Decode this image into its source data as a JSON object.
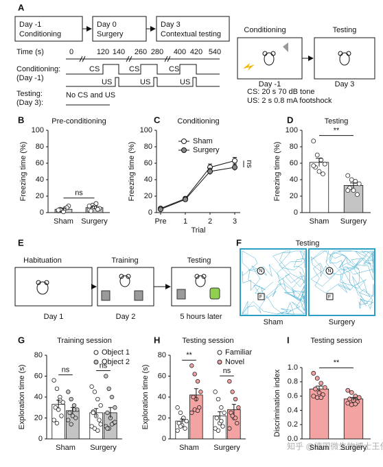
{
  "panel_a": {
    "letter": "A",
    "steps": [
      {
        "day": "Day -1",
        "label": "Conditioning"
      },
      {
        "day": "Day 0",
        "label": "Surgery"
      },
      {
        "day": "Day 3",
        "label": "Contextual testing"
      }
    ],
    "time_label": "Time (s)",
    "time_ticks": [
      0,
      120,
      140,
      260,
      280,
      400,
      420,
      540
    ],
    "conditioning_label": "Conditioning:",
    "conditioning_day": "(Day -1)",
    "cs": "CS",
    "us": "US",
    "testing_label": "Testing:",
    "testing_day": "(Day 3):",
    "testing_note": "No CS and US",
    "box_titles": [
      "Conditioning",
      "Testing"
    ],
    "box_days": [
      "Day -1",
      "Day 3"
    ],
    "notes": [
      "CS: 20 s 70 dB tone",
      "US: 2 s 0.8 mA footshock"
    ]
  },
  "panel_e": {
    "letter": "E",
    "stages": [
      "Habituation",
      "Training",
      "Testing"
    ],
    "times": [
      "Day 1",
      "Day 2",
      "5 hours later"
    ]
  },
  "panel_f": {
    "letter": "F",
    "title": "Testing",
    "groups": [
      "Sham",
      "Surgery"
    ],
    "objects": [
      "N",
      "F"
    ]
  },
  "watermark": "知乎 @德国微生物博士王任",
  "chart_data": [
    {
      "type": "bar",
      "panel": "B",
      "title": "Pre-conditioning",
      "ylabel": "Freezing time (%)",
      "categories": [
        "Sham",
        "Surgery"
      ],
      "values": [
        4,
        6
      ],
      "errors": [
        1.5,
        1.8
      ],
      "colors": [
        "#d4d4d4",
        "#c4c4c4"
      ],
      "point_color": "#ffffff",
      "points": [
        [
          2,
          3,
          5,
          8,
          4,
          1,
          6,
          3
        ],
        [
          3,
          9,
          11,
          5,
          2,
          7,
          4,
          8
        ]
      ],
      "ylim": [
        0,
        100
      ],
      "yticks": [
        0,
        20,
        40,
        60,
        80,
        100
      ],
      "significance": [
        "ns"
      ]
    },
    {
      "type": "line",
      "panel": "C",
      "title": "Conditioning",
      "ylabel": "Freezing time (%)",
      "xlabel": "Trial",
      "categories": [
        "Pre",
        "1",
        "2",
        "3"
      ],
      "series": [
        {
          "name": "Sham",
          "color": "#ffffff",
          "values": [
            5,
            17,
            55,
            63
          ],
          "errors": [
            1.5,
            2,
            4,
            4
          ]
        },
        {
          "name": "Surgery",
          "color": "#8a8a8a",
          "values": [
            4,
            16,
            50,
            55
          ],
          "errors": [
            1.5,
            2,
            4,
            4
          ]
        }
      ],
      "ylim": [
        0,
        100
      ],
      "yticks": [
        0,
        20,
        40,
        60,
        80,
        100
      ],
      "significance": [
        "ns"
      ],
      "legend": "upper left"
    },
    {
      "type": "bar",
      "panel": "D",
      "title": "Testing",
      "ylabel": "Freezing time (%)",
      "categories": [
        "Sham",
        "Surgery"
      ],
      "values": [
        61,
        33
      ],
      "errors": [
        5,
        3
      ],
      "colors": [
        "#ffffff",
        "#c4c4c4"
      ],
      "point_color": "#ffffff",
      "points": [
        [
          87,
          70,
          64,
          59,
          55,
          50,
          47,
          57
        ],
        [
          45,
          40,
          38,
          35,
          30,
          27,
          22,
          27
        ]
      ],
      "ylim": [
        0,
        100
      ],
      "yticks": [
        0,
        20,
        40,
        60,
        80,
        100
      ],
      "significance": [
        "**"
      ]
    },
    {
      "type": "bar",
      "panel": "G",
      "title": "Training session",
      "ylabel": "Exploration time (s)",
      "categories": [
        "Sham",
        "Surgery"
      ],
      "series": [
        {
          "name": "Object 1",
          "color": "#ffffff",
          "values": [
            33,
            25
          ],
          "errors": [
            4,
            4
          ],
          "points": [
            [
              56,
              48,
              40,
              35,
              30,
              28,
              22,
              18,
              15,
              37
            ],
            [
              50,
              45,
              38,
              32,
              26,
              22,
              18,
              12,
              10,
              8,
              14,
              25
            ]
          ]
        },
        {
          "name": "Object 2",
          "color": "#c4c4c4",
          "values": [
            27,
            25
          ],
          "errors": [
            3,
            5
          ],
          "points": [
            [
              45,
              38,
              32,
              28,
              25,
              22,
              20,
              18,
              14,
              28
            ],
            [
              60,
              48,
              40,
              30,
              25,
              20,
              15,
              12,
              10,
              14,
              16,
              10
            ]
          ]
        }
      ],
      "ylim": [
        0,
        80
      ],
      "yticks": [
        0,
        20,
        40,
        60,
        80
      ],
      "significance": [
        "ns",
        "ns"
      ],
      "legend": "upper right"
    },
    {
      "type": "bar",
      "panel": "H",
      "title": "Testing session",
      "ylabel": "Exploration time (s)",
      "categories": [
        "Sham",
        "Surgery"
      ],
      "series": [
        {
          "name": "Familiar",
          "color": "#ffffff",
          "values": [
            17,
            22
          ],
          "errors": [
            2,
            4
          ],
          "points": [
            [
              30,
              25,
              20,
              17,
              15,
              13,
              10,
              8,
              12,
              20
            ],
            [
              45,
              38,
              30,
              25,
              20,
              15,
              12,
              10,
              8,
              17
            ]
          ]
        },
        {
          "name": "Novel",
          "color": "#f4a3a3",
          "values": [
            42,
            28
          ],
          "errors": [
            6,
            5
          ],
          "points": [
            [
              70,
              62,
              55,
              45,
              40,
              38,
              30,
              25,
              28,
              27
            ],
            [
              55,
              45,
              38,
              30,
              25,
              20,
              15,
              10,
              22,
              20
            ]
          ]
        }
      ],
      "ylim": [
        0,
        80
      ],
      "yticks": [
        0,
        20,
        40,
        60,
        80
      ],
      "significance": [
        "**",
        "ns"
      ],
      "legend": "upper right"
    },
    {
      "type": "bar",
      "panel": "I",
      "title": "Testing session",
      "ylabel": "Discrimination index",
      "categories": [
        "Sham",
        "Surgery"
      ],
      "values": [
        0.7,
        0.56
      ],
      "errors": [
        0.04,
        0.02
      ],
      "colors": [
        "#f4a3a3",
        "#f4a3a3"
      ],
      "point_color": "#f4a3a3",
      "points": [
        [
          0.92,
          0.85,
          0.78,
          0.72,
          0.7,
          0.65,
          0.62,
          0.6,
          0.58,
          0.58
        ],
        [
          0.68,
          0.65,
          0.6,
          0.58,
          0.56,
          0.54,
          0.52,
          0.5,
          0.48,
          0.49
        ]
      ],
      "ylim": [
        0,
        1
      ],
      "yticks": [
        {
          "value": 0,
          "label": "0.0"
        },
        0.2,
        0.4,
        0.6,
        0.8,
        {
          "value": 1,
          "label": "1.0"
        }
      ],
      "significance": [
        "**"
      ]
    }
  ]
}
